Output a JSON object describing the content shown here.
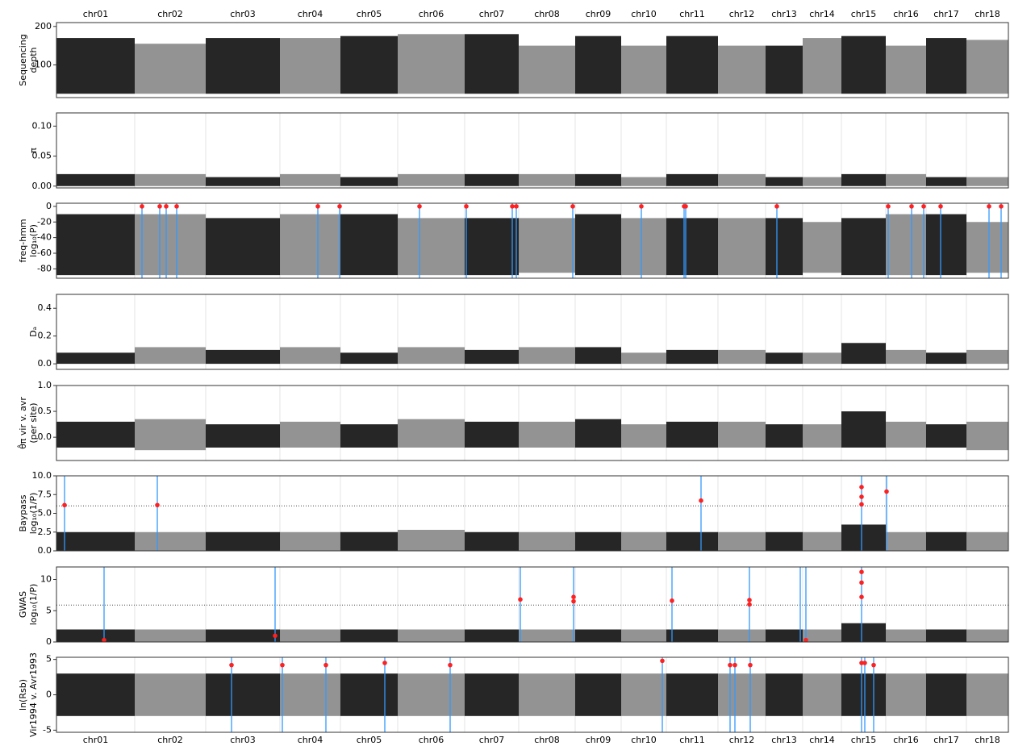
{
  "chart_data": [
    {
      "type": "manhattan",
      "ylabel": [
        "Sequencing",
        "depth"
      ],
      "categories": [
        "chr01",
        "chr02",
        "chr03",
        "chr04",
        "chr05",
        "chr06",
        "chr07",
        "chr08",
        "chr09",
        "chr10",
        "chr11",
        "chr12",
        "chr13",
        "chr14",
        "chr15",
        "chr16",
        "chr17",
        "chr18"
      ],
      "bins": [
        0,
        97,
        185,
        277,
        352,
        423,
        506,
        573,
        643,
        700,
        756,
        820,
        879,
        925,
        973,
        1028,
        1078,
        1128,
        1180
      ],
      "xlim": [
        0,
        1180
      ],
      "colors": [
        "#000000",
        "#808080"
      ],
      "ylim": [
        15,
        210
      ],
      "yticks": [
        100,
        200
      ],
      "grid": false,
      "lows": [
        25,
        25,
        25,
        25,
        25,
        25,
        25,
        25,
        25,
        25,
        25,
        25,
        25,
        25,
        25,
        25,
        25,
        25
      ],
      "highs": [
        170,
        155,
        170,
        170,
        175,
        180,
        180,
        150,
        175,
        150,
        175,
        150,
        150,
        170,
        175,
        150,
        170,
        165
      ]
    },
    {
      "type": "manhattan",
      "ylabel": [
        "π"
      ],
      "bins": [
        0,
        97,
        185,
        277,
        352,
        423,
        506,
        573,
        643,
        700,
        756,
        820,
        879,
        925,
        973,
        1028,
        1078,
        1128,
        1180
      ],
      "xlim": [
        0,
        1180
      ],
      "colors": [
        "#000000",
        "#808080"
      ],
      "ylim": [
        -0.003,
        0.122
      ],
      "yticks": [
        {
          "value": 0,
          "label": "0.00"
        },
        {
          "value": 0.05,
          "label": "0.05"
        },
        {
          "value": 0.1,
          "label": "0.10"
        }
      ],
      "grid": true,
      "lows": [
        0,
        0,
        0,
        0,
        0,
        0,
        0,
        0,
        0,
        0,
        0,
        0,
        0,
        0,
        0,
        0,
        0,
        0
      ],
      "highs": [
        0.02,
        0.02,
        0.015,
        0.02,
        0.015,
        0.02,
        0.02,
        0.02,
        0.02,
        0.015,
        0.02,
        0.02,
        0.015,
        0.015,
        0.02,
        0.02,
        0.015,
        0.015
      ]
    },
    {
      "type": "manhattan",
      "ylabel": [
        "freq-hmm",
        "log₁₀(P)"
      ],
      "bins": [
        0,
        97,
        185,
        277,
        352,
        423,
        506,
        573,
        643,
        700,
        756,
        820,
        879,
        925,
        973,
        1028,
        1078,
        1128,
        1180
      ],
      "xlim": [
        0,
        1180
      ],
      "colors": [
        "#000000",
        "#808080"
      ],
      "ylim": [
        -92,
        4
      ],
      "yticks": [
        0,
        -20,
        -40,
        -60,
        -80
      ],
      "grid": true,
      "lows": [
        -88,
        -88,
        -88,
        -88,
        -88,
        -88,
        -88,
        -85,
        -88,
        -88,
        -88,
        -88,
        -88,
        -85,
        -88,
        -88,
        -88,
        -85
      ],
      "highs": [
        -10,
        -10,
        -15,
        -10,
        -10,
        -15,
        -15,
        -15,
        -10,
        -15,
        -15,
        -15,
        -15,
        -20,
        -15,
        -10,
        -10,
        -20
      ],
      "lines": {
        "x": [
          106,
          128,
          136,
          149,
          324,
          351,
          450,
          508,
          565,
          570,
          640,
          725,
          778,
          780,
          893,
          1031,
          1060,
          1075,
          1096,
          1156,
          1171
        ]
      },
      "points": {
        "x": [
          106,
          128,
          136,
          149,
          324,
          351,
          450,
          508,
          565,
          570,
          640,
          725,
          778,
          780,
          893,
          1031,
          1060,
          1075,
          1096,
          1156,
          1171
        ],
        "values": [
          0,
          0,
          0,
          0,
          0,
          0,
          0,
          0,
          0,
          0,
          0,
          0,
          0,
          0,
          0,
          0,
          0,
          0,
          0,
          0,
          0
        ]
      }
    },
    {
      "type": "manhattan",
      "ylabel": [
        "Dₐ"
      ],
      "bins": [
        0,
        97,
        185,
        277,
        352,
        423,
        506,
        573,
        643,
        700,
        756,
        820,
        879,
        925,
        973,
        1028,
        1078,
        1128,
        1180
      ],
      "xlim": [
        0,
        1180
      ],
      "colors": [
        "#000000",
        "#808080"
      ],
      "ylim": [
        -0.04,
        0.5
      ],
      "yticks": [
        {
          "value": 0,
          "label": "0.0"
        },
        {
          "value": 0.2,
          "label": "0.2"
        },
        {
          "value": 0.4,
          "label": "0.4"
        }
      ],
      "grid": true,
      "lows": [
        0,
        0,
        0,
        0,
        0,
        0,
        0,
        0,
        0,
        0,
        0,
        0,
        0,
        0,
        0,
        0,
        0,
        0
      ],
      "highs": [
        0.08,
        0.12,
        0.1,
        0.12,
        0.08,
        0.12,
        0.1,
        0.12,
        0.12,
        0.08,
        0.1,
        0.1,
        0.08,
        0.08,
        0.15,
        0.1,
        0.08,
        0.1
      ]
    },
    {
      "type": "manhattan",
      "ylabel": [
        "θ̂π vir v. avr",
        "(per site)"
      ],
      "bins": [
        0,
        97,
        185,
        277,
        352,
        423,
        506,
        573,
        643,
        700,
        756,
        820,
        879,
        925,
        973,
        1028,
        1078,
        1128,
        1180
      ],
      "xlim": [
        0,
        1180
      ],
      "colors": [
        "#000000",
        "#808080"
      ],
      "ylim": [
        -0.45,
        1.0
      ],
      "yticks": [
        {
          "value": 0,
          "label": "0.0"
        },
        {
          "value": 0.5,
          "label": "0.5"
        },
        {
          "value": 1,
          "label": "1.0"
        }
      ],
      "grid": true,
      "lows": [
        -0.2,
        -0.25,
        -0.2,
        -0.2,
        -0.2,
        -0.2,
        -0.2,
        -0.2,
        -0.2,
        -0.2,
        -0.2,
        -0.2,
        -0.2,
        -0.2,
        -0.2,
        -0.2,
        -0.2,
        -0.25
      ],
      "highs": [
        0.3,
        0.35,
        0.25,
        0.3,
        0.25,
        0.35,
        0.3,
        0.3,
        0.35,
        0.25,
        0.3,
        0.3,
        0.25,
        0.25,
        0.5,
        0.3,
        0.25,
        0.3
      ]
    },
    {
      "type": "manhattan",
      "ylabel": [
        "Baypass",
        "log₁₀(1/P)"
      ],
      "bins": [
        0,
        97,
        185,
        277,
        352,
        423,
        506,
        573,
        643,
        700,
        756,
        820,
        879,
        925,
        973,
        1028,
        1078,
        1128,
        1180
      ],
      "xlim": [
        0,
        1180
      ],
      "colors": [
        "#000000",
        "#808080"
      ],
      "ylim": [
        0,
        10
      ],
      "yticks": [
        {
          "value": 0,
          "label": "0.0"
        },
        {
          "value": 2.5,
          "label": "2.5"
        },
        {
          "value": 5,
          "label": "5.0"
        },
        {
          "value": 7.5,
          "label": "7.5"
        },
        {
          "value": 10,
          "label": "10.0"
        }
      ],
      "grid": true,
      "threshold": 6,
      "lows": [
        0,
        0,
        0,
        0,
        0,
        0,
        0,
        0,
        0,
        0,
        0,
        0,
        0,
        0,
        0,
        0,
        0,
        0
      ],
      "highs": [
        2.5,
        2.5,
        2.5,
        2.5,
        2.5,
        2.8,
        2.5,
        2.5,
        2.5,
        2.5,
        2.5,
        2.5,
        2.5,
        2.5,
        3.5,
        2.5,
        2.5,
        2.5
      ],
      "lines": {
        "x": [
          10,
          125,
          799,
          998,
          1029
        ]
      },
      "points": {
        "x": [
          10,
          125,
          799,
          998,
          998,
          998,
          1029
        ],
        "values": [
          6.1,
          6.1,
          6.7,
          8.5,
          7.2,
          6.2,
          7.9
        ]
      }
    },
    {
      "type": "manhattan",
      "ylabel": [
        "GWAS",
        "log₁₀(1/P)"
      ],
      "bins": [
        0,
        97,
        185,
        277,
        352,
        423,
        506,
        573,
        643,
        700,
        756,
        820,
        879,
        925,
        973,
        1028,
        1078,
        1128,
        1180
      ],
      "xlim": [
        0,
        1180
      ],
      "colors": [
        "#000000",
        "#808080"
      ],
      "ylim": [
        0,
        12
      ],
      "yticks": [
        0,
        5,
        10
      ],
      "grid": true,
      "threshold": 5.9,
      "lows": [
        0,
        0,
        0,
        0,
        0,
        0,
        0,
        0,
        0,
        0,
        0,
        0,
        0,
        0,
        0,
        0,
        0,
        0
      ],
      "highs": [
        2,
        2,
        2,
        2,
        2,
        2,
        2,
        2,
        2,
        2,
        2,
        2,
        2,
        2,
        3,
        2,
        2,
        2
      ],
      "lines": {
        "x": [
          59,
          271,
          575,
          641,
          763,
          859,
          922,
          929,
          998
        ]
      },
      "points": {
        "x": [
          59,
          271,
          575,
          641,
          641,
          763,
          859,
          859,
          929,
          998,
          998,
          998
        ],
        "values": [
          0.3,
          1.0,
          6.8,
          7.2,
          6.5,
          6.6,
          6.7,
          6.0,
          0.3,
          11.2,
          9.5,
          7.2
        ]
      }
    },
    {
      "type": "manhattan",
      "ylabel": [
        "ln(Rsb)",
        "Vir1994 v. Avr1993"
      ],
      "categories": [
        "chr01",
        "chr02",
        "chr03",
        "chr04",
        "chr05",
        "chr06",
        "chr07",
        "chr08",
        "chr09",
        "chr10",
        "chr11",
        "chr12",
        "chr13",
        "chr14",
        "chr15",
        "chr16",
        "chr17",
        "chr18"
      ],
      "bins": [
        0,
        97,
        185,
        277,
        352,
        423,
        506,
        573,
        643,
        700,
        756,
        820,
        879,
        925,
        973,
        1028,
        1078,
        1128,
        1180
      ],
      "xlim": [
        0,
        1180
      ],
      "colors": [
        "#000000",
        "#808080"
      ],
      "ylim": [
        -5.3,
        5.3
      ],
      "yticks": [
        -5,
        0,
        5
      ],
      "grid": true,
      "lows": [
        -3,
        -3,
        -3,
        -3,
        -3,
        -3,
        -3,
        -3,
        -3,
        -3,
        -3,
        -3,
        -3,
        -3,
        -3,
        -3,
        -3,
        -3
      ],
      "highs": [
        3,
        3,
        3,
        3,
        3,
        3,
        3,
        3,
        3,
        3,
        3,
        3,
        3,
        3,
        3,
        3,
        3,
        3
      ],
      "lines": {
        "x": [
          217,
          280,
          334,
          407,
          488,
          751,
          835,
          841,
          860,
          998,
          1002,
          1013
        ]
      },
      "points": {
        "x": [
          217,
          280,
          334,
          407,
          488,
          751,
          835,
          841,
          860,
          998,
          1002,
          1013
        ],
        "values": [
          4.2,
          4.2,
          4.2,
          4.5,
          4.2,
          4.8,
          4.2,
          4.2,
          4.2,
          4.5,
          4.5,
          4.2
        ]
      }
    }
  ]
}
